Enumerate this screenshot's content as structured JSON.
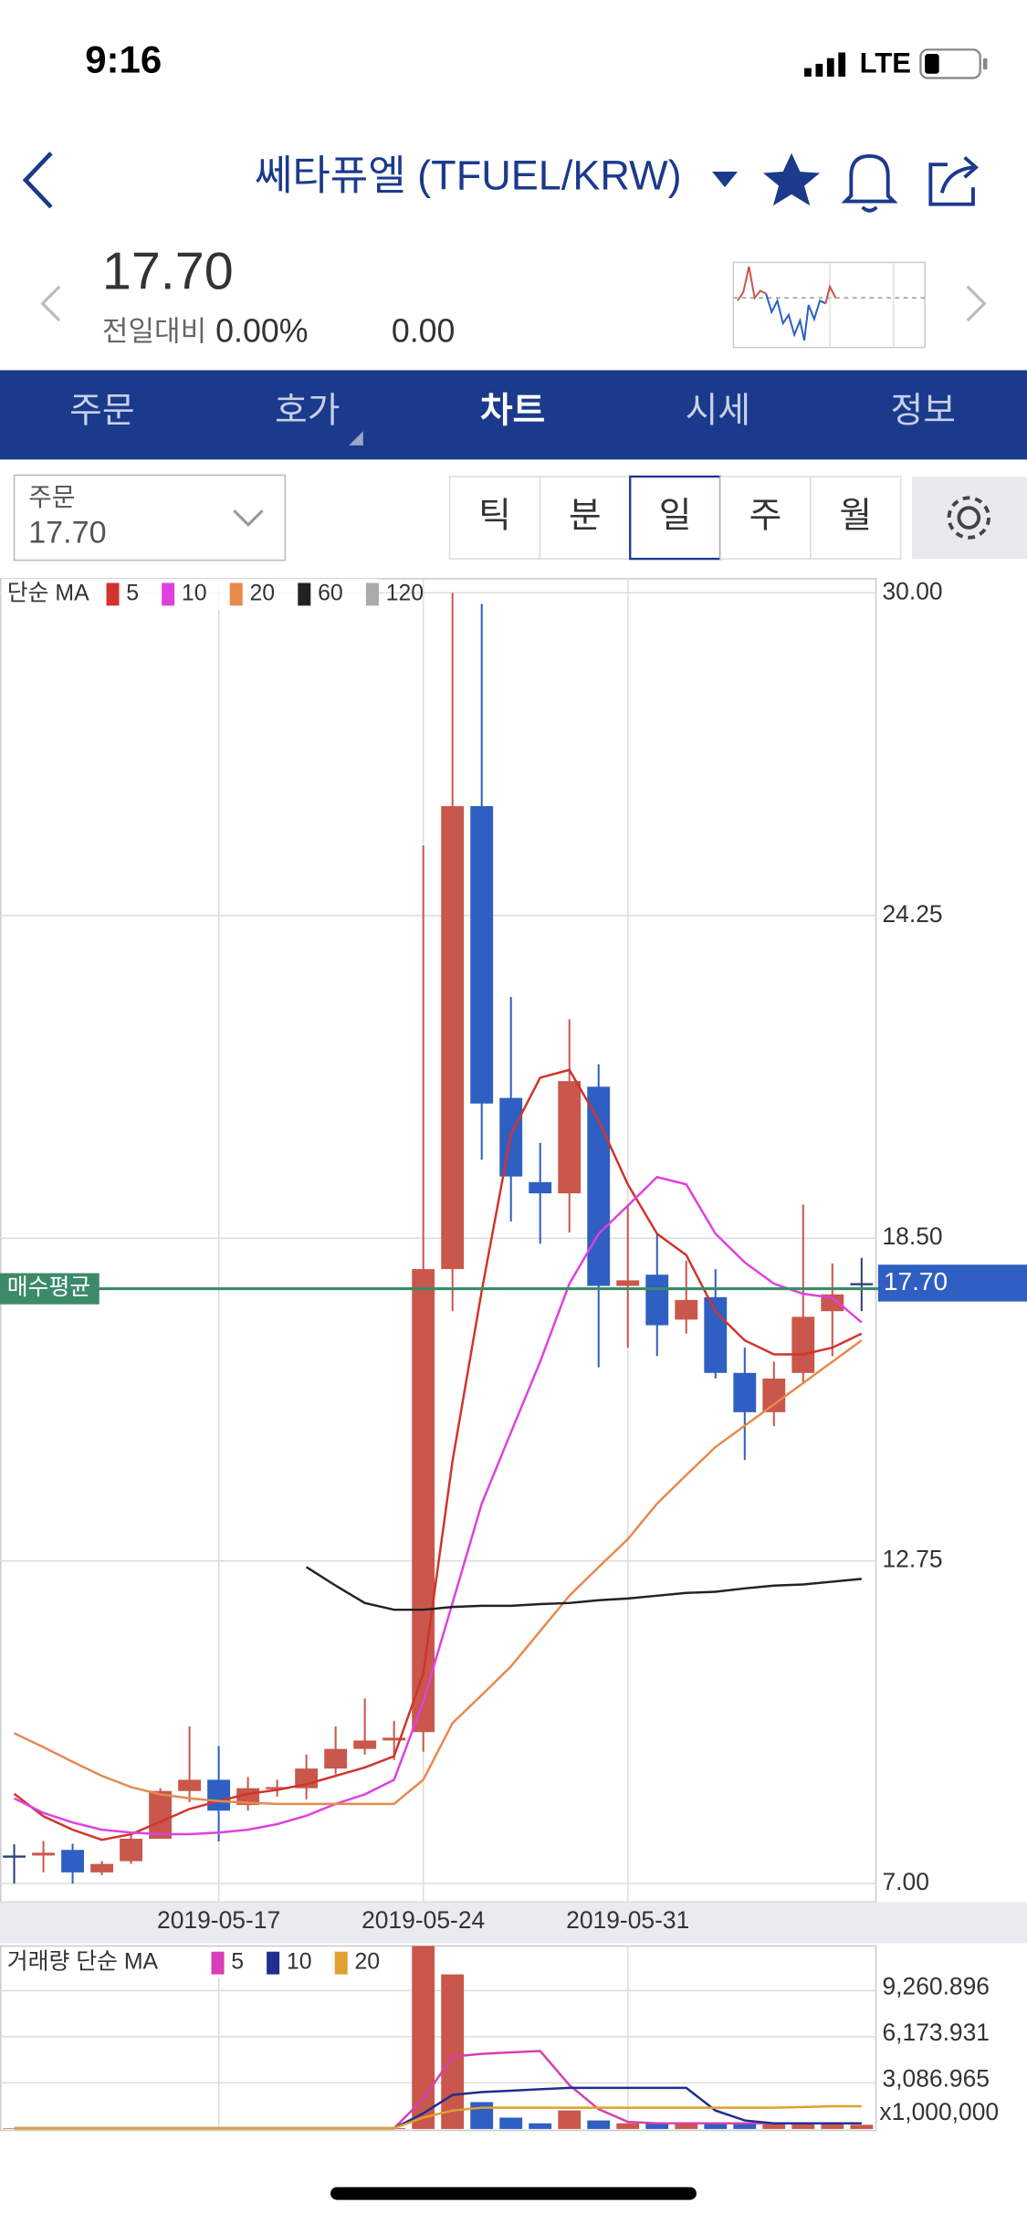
{
  "status": {
    "time": "9:16",
    "network": "LTE"
  },
  "header": {
    "title": "쎄타퓨엘 (TFUEL/KRW)"
  },
  "ticker": {
    "price": "17.70",
    "change_label": "전일대비",
    "change_pct": "0.00%",
    "change": "0.00"
  },
  "tabs": [
    "주문",
    "호가",
    "차트",
    "시세",
    "정보"
  ],
  "order_box": {
    "label": "주문",
    "price": "17.70"
  },
  "periods": [
    "틱",
    "분",
    "일",
    "주",
    "월"
  ],
  "chart_data": [
    {
      "type": "candlestick",
      "ma_label": "단순 MA",
      "categories": [
        null,
        null,
        null,
        null,
        null,
        null,
        null,
        "2019-05-17",
        null,
        null,
        null,
        null,
        null,
        null,
        "2019-05-24",
        null,
        null,
        null,
        null,
        null,
        null,
        "2019-05-31",
        null,
        null,
        null,
        null,
        null,
        null,
        null,
        null
      ],
      "open": [
        7.5,
        7.5,
        7.6,
        7.2,
        7.4,
        7.8,
        8.65,
        8.85,
        8.4,
        8.7,
        8.7,
        9.05,
        9.4,
        9.55,
        9.7,
        17.95,
        26.2,
        21.0,
        19.5,
        19.3,
        21.2,
        17.65,
        17.85,
        17.05,
        17.45,
        16.1,
        15.4,
        16.1,
        17.2,
        17.7
      ],
      "high": [
        7.7,
        7.76,
        7.71,
        7.4,
        7.9,
        8.7,
        9.8,
        9.45,
        8.9,
        8.85,
        9.3,
        9.8,
        10.3,
        9.9,
        25.5,
        30.0,
        29.8,
        22.8,
        20.2,
        22.4,
        21.6,
        19.1,
        18.6,
        18.1,
        17.95,
        16.55,
        16.3,
        19.1,
        18.05,
        18.15
      ],
      "low": [
        7.0,
        7.2,
        7.0,
        7.15,
        7.35,
        7.8,
        8.45,
        7.75,
        8.3,
        8.55,
        8.5,
        8.95,
        9.3,
        9.2,
        9.35,
        17.2,
        19.9,
        18.8,
        18.4,
        18.6,
        16.2,
        16.55,
        16.4,
        16.8,
        16.0,
        14.55,
        15.15,
        15.9,
        16.4,
        17.2
      ],
      "close": [
        7.5,
        7.55,
        7.2,
        7.35,
        7.8,
        8.65,
        8.85,
        8.3,
        8.7,
        8.72,
        9.05,
        9.4,
        9.55,
        9.6,
        17.95,
        26.2,
        20.9,
        19.6,
        19.3,
        21.3,
        17.65,
        17.75,
        16.95,
        17.4,
        16.1,
        15.4,
        16.0,
        17.1,
        17.5,
        17.7
      ],
      "up_color": "#c9574b",
      "down_color": "#2f5fc2",
      "series": [
        {
          "name": "5",
          "color": "#d0342c",
          "values": [
            8.6,
            8.2,
            7.96,
            7.78,
            7.88,
            8.1,
            8.33,
            8.47,
            8.6,
            8.67,
            8.77,
            8.92,
            9.07,
            9.27,
            10.74,
            14.53,
            17.56,
            20.35,
            21.36,
            21.5,
            20.6,
            19.46,
            18.58,
            18.2,
            17.19,
            16.68,
            16.43,
            16.43,
            16.55,
            16.8
          ]
        },
        {
          "name": "10",
          "color": "#e040e0",
          "values": [
            8.52,
            8.26,
            8.09,
            7.96,
            7.91,
            7.88,
            7.88,
            7.91,
            7.96,
            8.06,
            8.21,
            8.42,
            8.59,
            8.85,
            10.24,
            12.0,
            13.77,
            15.04,
            16.3,
            17.69,
            18.58,
            19.08,
            19.59,
            19.46,
            18.58,
            18.07,
            17.69,
            17.51,
            17.44,
            17.0
          ]
        },
        {
          "name": "20",
          "color": "#e8894e",
          "values": [
            9.68,
            9.43,
            9.17,
            8.92,
            8.72,
            8.59,
            8.52,
            8.47,
            8.44,
            8.42,
            8.42,
            8.42,
            8.42,
            8.42,
            8.85,
            9.86,
            10.36,
            10.87,
            11.5,
            12.13,
            12.64,
            13.14,
            13.77,
            14.28,
            14.78,
            15.16,
            15.54,
            15.92,
            16.3,
            16.68
          ]
        },
        {
          "name": "60",
          "color": "#222222",
          "values": [
            null,
            null,
            null,
            null,
            null,
            null,
            null,
            null,
            null,
            null,
            12.64,
            12.31,
            12.0,
            11.88,
            11.88,
            11.93,
            11.95,
            11.95,
            11.98,
            12.0,
            12.05,
            12.08,
            12.13,
            12.18,
            12.2,
            12.26,
            12.31,
            12.33,
            12.38,
            12.43
          ]
        },
        {
          "name": "120",
          "color": "#aaaaaa",
          "values": [
            null,
            null,
            null,
            null,
            null,
            null,
            null,
            null,
            null,
            null,
            null,
            null,
            null,
            null,
            null,
            null,
            null,
            null,
            null,
            null,
            null,
            null,
            null,
            null,
            null,
            null,
            null,
            null,
            null,
            null
          ]
        }
      ],
      "ylim": [
        7,
        30
      ],
      "yticks": [
        {
          "value": 7,
          "label": "7.00"
        },
        {
          "value": 12.75,
          "label": "12.75"
        },
        {
          "value": 18.5,
          "label": "18.50"
        },
        {
          "value": 24.25,
          "label": "24.25"
        },
        {
          "value": 30,
          "label": "30.00"
        }
      ],
      "grid": true,
      "avg_line": {
        "label": "매수평균",
        "value": 17.6,
        "color": "#3d8a6a"
      },
      "last_price": {
        "value": 17.7,
        "label": "17.70",
        "color": "#2f5fc2"
      }
    },
    {
      "type": "bar",
      "ma_label": "거래량 단순 MA",
      "values": [
        40,
        40,
        40,
        40,
        40,
        40,
        40,
        40,
        40,
        40,
        40,
        40,
        40,
        60,
        12250,
        10350,
        1800,
        760,
        380,
        1240,
        570,
        380,
        380,
        380,
        380,
        380,
        380,
        380,
        450,
        280
      ],
      "series": [
        {
          "name": "5",
          "color": "#d63fb5",
          "values": [
            50,
            50,
            50,
            50,
            50,
            50,
            50,
            50,
            50,
            50,
            50,
            50,
            50,
            50,
            2000,
            4840,
            5030,
            5130,
            5220,
            2940,
            1330,
            475,
            380,
            380,
            380,
            380,
            380,
            380,
            380,
            380
          ]
        },
        {
          "name": "10",
          "color": "#1f2e8f",
          "values": [
            50,
            50,
            50,
            50,
            50,
            50,
            50,
            50,
            50,
            50,
            50,
            50,
            50,
            50,
            1045,
            2280,
            2470,
            2560,
            2660,
            2750,
            2750,
            2750,
            2750,
            2750,
            1235,
            570,
            380,
            380,
            380,
            380
          ]
        },
        {
          "name": "20",
          "color": "#e0a030",
          "values": [
            50,
            50,
            50,
            50,
            50,
            50,
            50,
            50,
            50,
            50,
            50,
            50,
            50,
            50,
            760,
            1235,
            1420,
            1420,
            1420,
            1420,
            1420,
            1420,
            1420,
            1420,
            1420,
            1420,
            1420,
            1470,
            1520,
            1520
          ]
        }
      ],
      "ylim": [
        0,
        12250
      ],
      "yticks": [
        {
          "value": 3086.965,
          "label": "3,086.965"
        },
        {
          "value": 6173.931,
          "label": "6,173.931"
        },
        {
          "value": 9260.896,
          "label": "9,260.896"
        }
      ],
      "unit_label": "x1,000,000",
      "grid": true
    }
  ]
}
